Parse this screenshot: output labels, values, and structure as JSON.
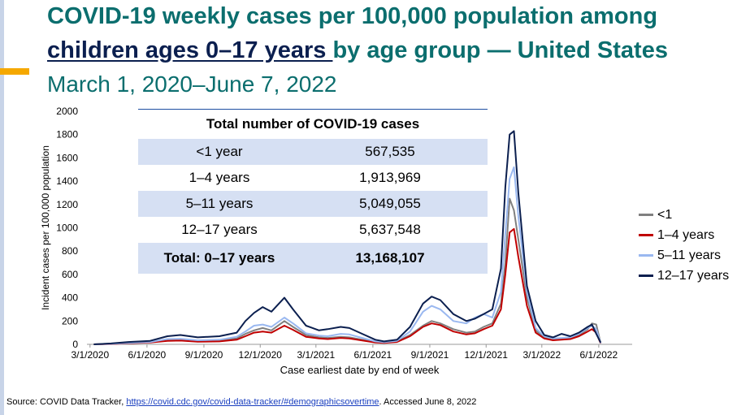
{
  "title_line1": "COVID-19 weekly cases per 100,000 population among",
  "title_line2_underlined": "children ages 0–17 years ",
  "title_line2_rest": "by age group — United States",
  "subtitle": "March 1, 2020–June 7, 2022",
  "colors": {
    "title": "#0b6e6e",
    "accent": "#f5a800",
    "strip": "#c8d4e8"
  },
  "table": {
    "header": "Total number of COVID-19 cases",
    "rows": [
      {
        "label": "<1 year",
        "value": "567,535"
      },
      {
        "label": "1–4 years",
        "value": "1,913,969"
      },
      {
        "label": "5–11 years",
        "value": "5,049,055"
      },
      {
        "label": "12–17 years",
        "value": "5,637,548"
      }
    ],
    "total": {
      "label": "Total: 0–17 years",
      "value": "13,168,107"
    }
  },
  "source": {
    "prefix": "Source: COVID Data Tracker, ",
    "link": "https://covid.cdc.gov/covid-data-tracker/#demographicsovertime",
    "suffix": ". Accessed June 8, 2022"
  },
  "chart_data": {
    "type": "line",
    "title": "COVID-19 weekly cases per 100,000 population among children ages 0–17 years by age group — United States",
    "xlabel": "Case earliest date by end of week",
    "ylabel": "Incident cases per 100,000 population",
    "ylim": [
      0,
      2000
    ],
    "yticks": [
      "0",
      "200",
      "400",
      "600",
      "800",
      "1000",
      "1200",
      "1400",
      "1600",
      "1800",
      "2000"
    ],
    "xlim": [
      "2020-02-25",
      "2022-07-25"
    ],
    "xticks": [
      {
        "date": "2020-03-01",
        "label": "3/1/2020"
      },
      {
        "date": "2020-06-01",
        "label": "6/1/2020"
      },
      {
        "date": "2020-09-01",
        "label": "9/1/2020"
      },
      {
        "date": "2020-12-01",
        "label": "12/1/2020"
      },
      {
        "date": "2021-03-01",
        "label": "3/1/2021"
      },
      {
        "date": "2021-06-01",
        "label": "6/1/2021"
      },
      {
        "date": "2021-09-01",
        "label": "9/1/2021"
      },
      {
        "date": "2021-12-01",
        "label": "12/1/2021"
      },
      {
        "date": "2022-03-01",
        "label": "3/1/2022"
      },
      {
        "date": "2022-06-01",
        "label": "6/1/2022"
      }
    ],
    "legend_position": "right",
    "series": [
      {
        "name": "<1",
        "color": "#808080",
        "width": 2,
        "points": [
          [
            "2020-03-07",
            0
          ],
          [
            "2020-04-04",
            5
          ],
          [
            "2020-05-02",
            15
          ],
          [
            "2020-06-06",
            22
          ],
          [
            "2020-07-04",
            40
          ],
          [
            "2020-07-25",
            42
          ],
          [
            "2020-08-22",
            30
          ],
          [
            "2020-09-26",
            35
          ],
          [
            "2020-10-24",
            50
          ],
          [
            "2020-11-07",
            90
          ],
          [
            "2020-11-21",
            120
          ],
          [
            "2020-12-05",
            140
          ],
          [
            "2020-12-19",
            120
          ],
          [
            "2021-01-09",
            200
          ],
          [
            "2021-01-23",
            150
          ],
          [
            "2021-02-13",
            80
          ],
          [
            "2021-03-06",
            60
          ],
          [
            "2021-03-20",
            55
          ],
          [
            "2021-04-10",
            65
          ],
          [
            "2021-04-24",
            60
          ],
          [
            "2021-05-15",
            40
          ],
          [
            "2021-06-05",
            20
          ],
          [
            "2021-06-19",
            15
          ],
          [
            "2021-07-10",
            25
          ],
          [
            "2021-07-31",
            80
          ],
          [
            "2021-08-21",
            160
          ],
          [
            "2021-09-04",
            200
          ],
          [
            "2021-09-18",
            180
          ],
          [
            "2021-10-09",
            130
          ],
          [
            "2021-10-30",
            100
          ],
          [
            "2021-11-13",
            110
          ],
          [
            "2021-11-27",
            150
          ],
          [
            "2021-12-11",
            180
          ],
          [
            "2021-12-25",
            350
          ],
          [
            "2022-01-01",
            700
          ],
          [
            "2022-01-08",
            1250
          ],
          [
            "2022-01-15",
            1150
          ],
          [
            "2022-01-22",
            900
          ],
          [
            "2022-02-05",
            400
          ],
          [
            "2022-02-19",
            120
          ],
          [
            "2022-03-05",
            60
          ],
          [
            "2022-03-19",
            45
          ],
          [
            "2022-04-02",
            50
          ],
          [
            "2022-04-16",
            50
          ],
          [
            "2022-04-30",
            80
          ],
          [
            "2022-05-14",
            130
          ],
          [
            "2022-05-21",
            180
          ],
          [
            "2022-05-28",
            170
          ],
          [
            "2022-06-04",
            10
          ]
        ]
      },
      {
        "name": "1–4 years",
        "color": "#c00000",
        "width": 2,
        "points": [
          [
            "2020-03-07",
            0
          ],
          [
            "2020-04-04",
            3
          ],
          [
            "2020-05-02",
            10
          ],
          [
            "2020-06-06",
            15
          ],
          [
            "2020-07-04",
            30
          ],
          [
            "2020-07-25",
            32
          ],
          [
            "2020-08-22",
            22
          ],
          [
            "2020-09-26",
            25
          ],
          [
            "2020-10-24",
            40
          ],
          [
            "2020-11-07",
            70
          ],
          [
            "2020-11-21",
            100
          ],
          [
            "2020-12-05",
            110
          ],
          [
            "2020-12-19",
            100
          ],
          [
            "2021-01-09",
            160
          ],
          [
            "2021-01-23",
            125
          ],
          [
            "2021-02-13",
            65
          ],
          [
            "2021-03-06",
            50
          ],
          [
            "2021-03-20",
            45
          ],
          [
            "2021-04-10",
            55
          ],
          [
            "2021-04-24",
            50
          ],
          [
            "2021-05-15",
            33
          ],
          [
            "2021-06-05",
            15
          ],
          [
            "2021-06-19",
            12
          ],
          [
            "2021-07-10",
            20
          ],
          [
            "2021-07-31",
            70
          ],
          [
            "2021-08-21",
            150
          ],
          [
            "2021-09-04",
            180
          ],
          [
            "2021-09-18",
            165
          ],
          [
            "2021-10-09",
            110
          ],
          [
            "2021-10-30",
            85
          ],
          [
            "2021-11-13",
            95
          ],
          [
            "2021-11-27",
            130
          ],
          [
            "2021-12-11",
            160
          ],
          [
            "2021-12-25",
            300
          ],
          [
            "2022-01-01",
            600
          ],
          [
            "2022-01-08",
            960
          ],
          [
            "2022-01-15",
            990
          ],
          [
            "2022-01-22",
            750
          ],
          [
            "2022-02-05",
            330
          ],
          [
            "2022-02-19",
            100
          ],
          [
            "2022-03-05",
            50
          ],
          [
            "2022-03-19",
            35
          ],
          [
            "2022-04-02",
            40
          ],
          [
            "2022-04-16",
            45
          ],
          [
            "2022-04-30",
            70
          ],
          [
            "2022-05-14",
            110
          ],
          [
            "2022-05-21",
            130
          ],
          [
            "2022-05-28",
            100
          ],
          [
            "2022-06-04",
            8
          ]
        ]
      },
      {
        "name": "5–11 years",
        "color": "#9ab8f0",
        "width": 2,
        "points": [
          [
            "2020-03-07",
            0
          ],
          [
            "2020-04-04",
            4
          ],
          [
            "2020-05-02",
            12
          ],
          [
            "2020-06-06",
            20
          ],
          [
            "2020-07-04",
            45
          ],
          [
            "2020-07-25",
            48
          ],
          [
            "2020-08-22",
            35
          ],
          [
            "2020-09-26",
            40
          ],
          [
            "2020-10-24",
            65
          ],
          [
            "2020-11-07",
            110
          ],
          [
            "2020-11-21",
            160
          ],
          [
            "2020-12-05",
            170
          ],
          [
            "2020-12-19",
            150
          ],
          [
            "2021-01-09",
            230
          ],
          [
            "2021-01-23",
            180
          ],
          [
            "2021-02-13",
            95
          ],
          [
            "2021-03-06",
            75
          ],
          [
            "2021-03-20",
            70
          ],
          [
            "2021-04-10",
            90
          ],
          [
            "2021-04-24",
            85
          ],
          [
            "2021-05-15",
            55
          ],
          [
            "2021-06-05",
            25
          ],
          [
            "2021-06-19",
            18
          ],
          [
            "2021-07-10",
            30
          ],
          [
            "2021-07-31",
            110
          ],
          [
            "2021-08-21",
            280
          ],
          [
            "2021-09-04",
            330
          ],
          [
            "2021-09-18",
            300
          ],
          [
            "2021-10-09",
            200
          ],
          [
            "2021-10-30",
            180
          ],
          [
            "2021-11-13",
            230
          ],
          [
            "2021-11-27",
            260
          ],
          [
            "2021-12-11",
            230
          ],
          [
            "2021-12-25",
            450
          ],
          [
            "2022-01-01",
            950
          ],
          [
            "2022-01-08",
            1420
          ],
          [
            "2022-01-15",
            1520
          ],
          [
            "2022-01-22",
            1100
          ],
          [
            "2022-02-05",
            450
          ],
          [
            "2022-02-19",
            140
          ],
          [
            "2022-03-05",
            70
          ],
          [
            "2022-03-19",
            50
          ],
          [
            "2022-04-02",
            55
          ],
          [
            "2022-04-16",
            60
          ],
          [
            "2022-04-30",
            90
          ],
          [
            "2022-05-14",
            140
          ],
          [
            "2022-05-21",
            160
          ],
          [
            "2022-05-28",
            130
          ],
          [
            "2022-06-04",
            10
          ]
        ]
      },
      {
        "name": "12–17 years",
        "color": "#0b1f4f",
        "width": 2,
        "points": [
          [
            "2020-03-07",
            0
          ],
          [
            "2020-04-04",
            8
          ],
          [
            "2020-05-02",
            20
          ],
          [
            "2020-06-06",
            30
          ],
          [
            "2020-07-04",
            70
          ],
          [
            "2020-07-25",
            80
          ],
          [
            "2020-08-22",
            60
          ],
          [
            "2020-09-26",
            70
          ],
          [
            "2020-10-24",
            100
          ],
          [
            "2020-11-07",
            200
          ],
          [
            "2020-11-21",
            270
          ],
          [
            "2020-12-05",
            320
          ],
          [
            "2020-12-19",
            280
          ],
          [
            "2021-01-09",
            400
          ],
          [
            "2021-01-23",
            300
          ],
          [
            "2021-02-13",
            160
          ],
          [
            "2021-03-06",
            120
          ],
          [
            "2021-03-20",
            130
          ],
          [
            "2021-04-10",
            150
          ],
          [
            "2021-04-24",
            140
          ],
          [
            "2021-05-15",
            90
          ],
          [
            "2021-06-05",
            40
          ],
          [
            "2021-06-19",
            25
          ],
          [
            "2021-07-10",
            40
          ],
          [
            "2021-07-31",
            150
          ],
          [
            "2021-08-21",
            350
          ],
          [
            "2021-09-04",
            410
          ],
          [
            "2021-09-18",
            380
          ],
          [
            "2021-10-09",
            260
          ],
          [
            "2021-10-30",
            200
          ],
          [
            "2021-11-13",
            220
          ],
          [
            "2021-11-27",
            260
          ],
          [
            "2021-12-11",
            300
          ],
          [
            "2021-12-25",
            650
          ],
          [
            "2022-01-01",
            1350
          ],
          [
            "2022-01-08",
            1800
          ],
          [
            "2022-01-15",
            1830
          ],
          [
            "2022-01-22",
            1300
          ],
          [
            "2022-02-05",
            500
          ],
          [
            "2022-02-19",
            200
          ],
          [
            "2022-03-05",
            80
          ],
          [
            "2022-03-19",
            60
          ],
          [
            "2022-04-02",
            90
          ],
          [
            "2022-04-16",
            70
          ],
          [
            "2022-04-30",
            100
          ],
          [
            "2022-05-14",
            150
          ],
          [
            "2022-05-21",
            170
          ],
          [
            "2022-05-28",
            90
          ],
          [
            "2022-06-04",
            15
          ]
        ]
      }
    ]
  }
}
